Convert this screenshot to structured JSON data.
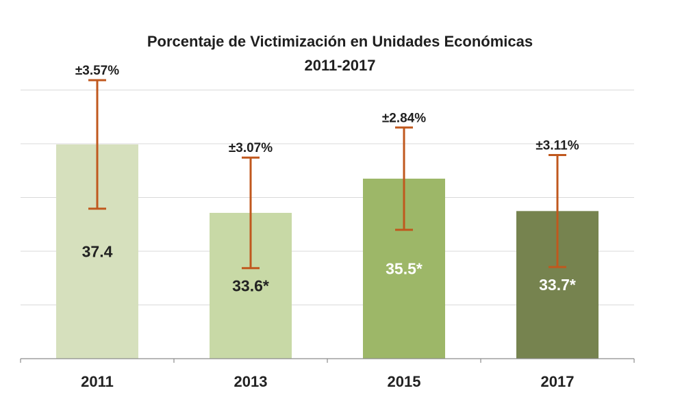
{
  "chart_data": {
    "type": "bar",
    "title": "Porcentaje de Victimización en Unidades Económicas",
    "subtitle": "2011-2017",
    "categories": [
      "2011",
      "2013",
      "2015",
      "2017"
    ],
    "values": [
      37.4,
      33.6,
      35.5,
      33.7
    ],
    "value_labels": [
      "37.4",
      "33.6*",
      "35.5*",
      "33.7*"
    ],
    "error_margins": [
      3.57,
      3.07,
      2.84,
      3.11
    ],
    "error_labels": [
      "±3.57%",
      "±3.07%",
      "±2.84%",
      "±3.11%"
    ],
    "bar_colors": [
      "#d6e0bd",
      "#c8d9a6",
      "#9db768",
      "#76834f"
    ],
    "value_label_colors": [
      "#222222",
      "#222222",
      "#ffffff",
      "#ffffff"
    ],
    "error_bar_color": "#c0581e",
    "grid": true,
    "legend": "none"
  }
}
